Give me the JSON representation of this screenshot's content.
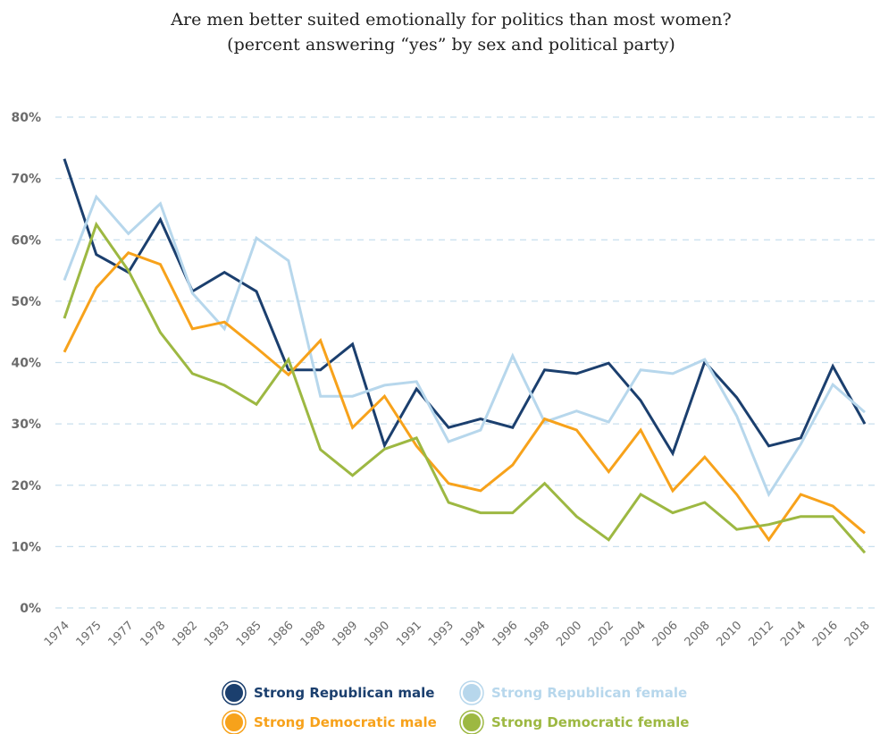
{
  "chart_data": {
    "type": "line",
    "title": "Are men better suited emotionally for politics than most women?",
    "subtitle": "(percent answering “yes” by sex and political party)",
    "categories": [
      "1974",
      "1975",
      "1977",
      "1978",
      "1982",
      "1983",
      "1985",
      "1986",
      "1988",
      "1989",
      "1990",
      "1991",
      "1993",
      "1994",
      "1996",
      "1998",
      "2000",
      "2002",
      "2004",
      "2006",
      "2008",
      "2010",
      "2012",
      "2014",
      "2016",
      "2018"
    ],
    "series": [
      {
        "name": "Strong Republican male",
        "color": "#1b3f6e",
        "values": [
          73.2,
          57.6,
          54.7,
          63.3,
          51.6,
          54.7,
          51.6,
          38.8,
          38.8,
          43,
          26.5,
          35.7,
          29.4,
          30.8,
          29.4,
          38.8,
          38.2,
          39.9,
          33.8,
          25.2,
          40.1,
          34.3,
          26.4,
          27.7,
          39.4,
          30
        ]
      },
      {
        "name": "Strong Republican female",
        "color": "#b7d7ec",
        "values": [
          53.4,
          67,
          61,
          65.9,
          51.3,
          45.5,
          60.3,
          56.6,
          34.5,
          34.5,
          36.3,
          36.9,
          27.1,
          29,
          41.1,
          30.3,
          32.1,
          30.3,
          38.8,
          38.2,
          40.5,
          31.3,
          18.5,
          26.7,
          36.4,
          31.9
        ]
      },
      {
        "name": "Strong Democratic male",
        "color": "#f7a21b",
        "values": [
          41.7,
          52.2,
          57.9,
          56,
          45.5,
          46.6,
          42.4,
          38,
          43.6,
          29.4,
          34.5,
          26.4,
          20.3,
          19.1,
          23.3,
          30.8,
          29,
          22.2,
          29,
          19.1,
          24.6,
          18.5,
          11.1,
          18.5,
          16.6,
          12.2
        ]
      },
      {
        "name": "Strong Democratic female",
        "color": "#9db842",
        "values": [
          47.2,
          62.5,
          55,
          44.9,
          38.2,
          36.3,
          33.2,
          40.5,
          25.8,
          21.6,
          25.9,
          27.7,
          17.2,
          15.5,
          15.5,
          20.3,
          14.9,
          11.1,
          18.5,
          15.5,
          17.2,
          12.8,
          13.6,
          14.9,
          14.9,
          9
        ]
      }
    ],
    "ylim": [
      0,
      80
    ],
    "yticks": [
      {
        "value": 0,
        "label": "0%"
      },
      {
        "value": 10,
        "label": "10%"
      },
      {
        "value": 20,
        "label": "20%"
      },
      {
        "value": 30,
        "label": "30%"
      },
      {
        "value": 40,
        "label": "40%"
      },
      {
        "value": 50,
        "label": "50%"
      },
      {
        "value": 60,
        "label": "60%"
      },
      {
        "value": 70,
        "label": "70%"
      },
      {
        "value": 80,
        "label": "80%"
      }
    ],
    "grid": true,
    "legend": "bottom"
  }
}
